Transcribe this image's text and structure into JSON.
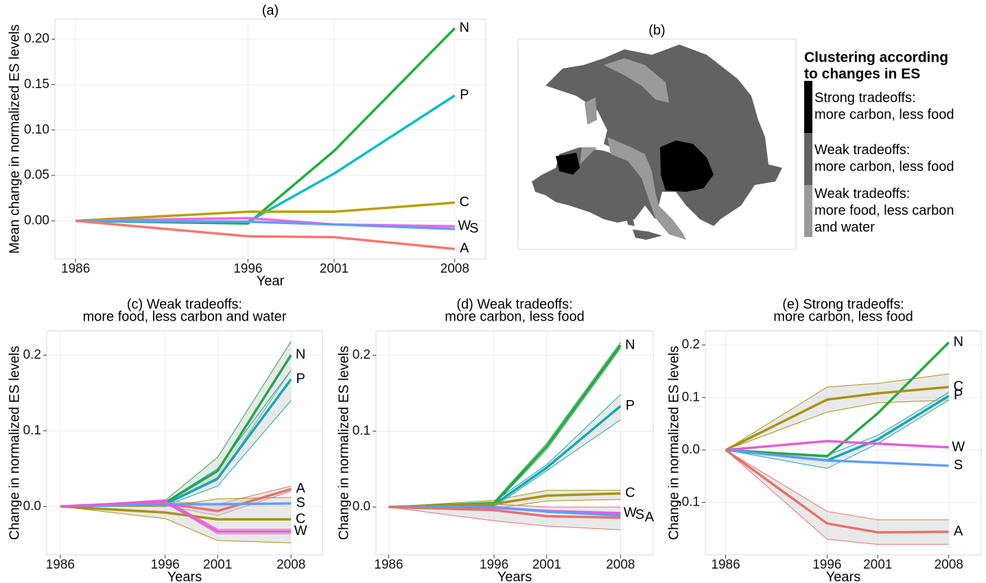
{
  "chart_data": [
    {
      "type": "line",
      "title": "(a)",
      "xlabel": "Year",
      "ylabel": "Mean change in normalized ES levels",
      "x": [
        1986,
        1996,
        2001,
        2008
      ],
      "xlim": [
        1984.8,
        2009.8
      ],
      "xticks": [
        1986,
        1996,
        2001,
        2008
      ],
      "ylim": [
        -0.042,
        0.222
      ],
      "yticks": [
        {
          "value": 0,
          "label": "0.00"
        },
        0.05,
        {
          "value": 0.1,
          "label": "0.10"
        },
        0.15,
        {
          "value": 0.2,
          "label": "0.20"
        }
      ],
      "grid": true,
      "series": [
        {
          "name": "N",
          "color": "#1cae38",
          "values": [
            0,
            -0.003,
            0.077,
            0.212
          ]
        },
        {
          "name": "P",
          "color": "#00bfc4",
          "values": [
            0,
            -0.001,
            0.052,
            0.138
          ]
        },
        {
          "name": "C",
          "color": "#b79f00",
          "values": [
            0,
            0.01,
            0.01,
            0.02
          ]
        },
        {
          "name": "W",
          "color": "#f564e3",
          "values": [
            0,
            0.003,
            -0.004,
            -0.006
          ]
        },
        {
          "name": "S",
          "color": "#619cff",
          "values": [
            0,
            -0.001,
            -0.004,
            -0.009
          ]
        },
        {
          "name": "A",
          "color": "#f8766d",
          "values": [
            0,
            -0.017,
            -0.018,
            -0.031
          ]
        }
      ]
    },
    {
      "type": "map",
      "title": "(b)",
      "legend_title": [
        "Clustering according",
        "to changes in ES"
      ],
      "categories": [
        [
          "Strong tradeoffs:",
          "more carbon, less food"
        ],
        [
          "Weak tradeoffs:",
          "more carbon, less food"
        ],
        [
          "Weak tradeoffs:",
          "more food, less carbon",
          "and water"
        ]
      ],
      "colors": [
        "#000000",
        "#626262",
        "#9a9a9a"
      ]
    },
    {
      "type": "line",
      "title": [
        "(c) Weak tradeoffs:",
        "more food, less carbon and water"
      ],
      "xlabel": "Years",
      "ylabel": "Change in normalized ES levels",
      "x": [
        1986,
        1996,
        2001,
        2008
      ],
      "xlim": [
        1984.7,
        2011
      ],
      "xticks": [
        1986,
        1996,
        2001,
        2008
      ],
      "ylim": [
        -0.064,
        0.232
      ],
      "yticks": [
        {
          "value": 0,
          "label": "0.0"
        },
        0.1,
        0.2
      ],
      "grid": true,
      "series": [
        {
          "name": "N",
          "color": "#22a843",
          "values": [
            0,
            0.005,
            0.047,
            0.2
          ],
          "lower": [
            0,
            0.002,
            0.035,
            0.18
          ],
          "upper": [
            0,
            0.008,
            0.065,
            0.218
          ]
        },
        {
          "name": "P",
          "color": "#12a8b4",
          "values": [
            0,
            0.003,
            0.037,
            0.168
          ],
          "lower": [
            0,
            0.001,
            0.027,
            0.14
          ],
          "upper": [
            0,
            0.006,
            0.05,
            0.18
          ]
        },
        {
          "name": "A",
          "color": "#e8716a",
          "values": [
            0,
            0.004,
            -0.006,
            0.023
          ],
          "lower": [
            0,
            0.001,
            -0.012,
            0.02
          ],
          "upper": [
            0,
            0.007,
            0.003,
            0.027
          ]
        },
        {
          "name": "S",
          "color": "#619cff",
          "values": [
            0,
            0.003,
            0.003,
            0.004
          ]
        },
        {
          "name": "C",
          "color": "#a89210",
          "values": [
            0,
            -0.008,
            -0.017,
            -0.017
          ],
          "lower": [
            0,
            -0.016,
            -0.045,
            -0.048
          ],
          "upper": [
            0,
            0.0,
            0.01,
            0.012
          ]
        },
        {
          "name": "W",
          "color": "#e85cd8",
          "values": [
            0,
            0.007,
            -0.033,
            -0.033
          ],
          "lower": [
            0,
            0.005,
            -0.036,
            -0.036
          ],
          "upper": [
            0,
            0.009,
            -0.03,
            -0.03
          ]
        }
      ]
    },
    {
      "type": "line",
      "title": [
        "(d) Weak tradeoffs:",
        "more carbon, less food"
      ],
      "xlabel": "Years",
      "ylabel": "Change in normalized ES levels",
      "x": [
        1986,
        1996,
        2001,
        2008
      ],
      "xlim": [
        1984.8,
        2011.1
      ],
      "xticks": [
        1986,
        1996,
        2001,
        2008
      ],
      "ylim": [
        -0.063,
        0.232
      ],
      "yticks": [
        {
          "value": 0,
          "label": "0.0"
        },
        0.1,
        0.2
      ],
      "grid": true,
      "series": [
        {
          "name": "N",
          "color": "#22a843",
          "values": [
            0,
            0.005,
            0.08,
            0.213
          ],
          "lower": [
            0,
            0.003,
            0.076,
            0.209
          ],
          "upper": [
            0,
            0.007,
            0.084,
            0.217
          ]
        },
        {
          "name": "P",
          "color": "#12a8b4",
          "values": [
            0,
            0.003,
            0.052,
            0.133
          ],
          "lower": [
            0,
            0.0,
            0.048,
            0.115
          ],
          "upper": [
            0,
            0.007,
            0.056,
            0.148
          ]
        },
        {
          "name": "C",
          "color": "#a89210",
          "values": [
            0,
            0.004,
            0.015,
            0.018
          ],
          "lower": [
            0,
            -0.002,
            0.008,
            0.01
          ],
          "upper": [
            0,
            0.009,
            0.022,
            0.022
          ]
        },
        {
          "name": "W",
          "color": "#e85cd8",
          "values": [
            0,
            -0.001,
            -0.005,
            -0.008
          ]
        },
        {
          "name": "S",
          "color": "#619cff",
          "values": [
            0,
            0.0,
            -0.006,
            -0.011
          ]
        },
        {
          "name": "A",
          "color": "#e8716a",
          "values": [
            0,
            -0.004,
            -0.012,
            -0.014
          ],
          "lower": [
            0,
            -0.018,
            -0.025,
            -0.03
          ],
          "upper": [
            0,
            0.004,
            0.0,
            0.0
          ]
        }
      ]
    },
    {
      "type": "line",
      "title": [
        "(e) Strong tradeoffs:",
        "more carbon, less food"
      ],
      "xlabel": "Years",
      "ylabel": "Change in normalized ES levels",
      "x": [
        1986,
        1996,
        2001,
        2008
      ],
      "xlim": [
        1984,
        2011.2
      ],
      "xticks": [
        1986,
        1996,
        2001,
        2008
      ],
      "ylim": [
        -0.2,
        0.227
      ],
      "yticks": [
        -0.1,
        {
          "value": 0,
          "label": "0.0"
        },
        0.1,
        0.2
      ],
      "grid": true,
      "series": [
        {
          "name": "N",
          "color": "#22a843",
          "values": [
            0,
            -0.012,
            0.07,
            0.205
          ]
        },
        {
          "name": "C",
          "color": "#a89210",
          "values": [
            0,
            0.096,
            0.108,
            0.12
          ],
          "lower": [
            0,
            0.072,
            0.09,
            0.095
          ],
          "upper": [
            0,
            0.12,
            0.127,
            0.145
          ]
        },
        {
          "name": "P",
          "color": "#12a8b4",
          "values": [
            0,
            -0.02,
            0.02,
            0.103
          ],
          "lower": [
            0,
            -0.035,
            0.012,
            0.095
          ],
          "upper": [
            0,
            -0.01,
            0.028,
            0.11
          ]
        },
        {
          "name": "W",
          "color": "#e85cd8",
          "values": [
            0,
            0.017,
            0.012,
            0.005
          ]
        },
        {
          "name": "S",
          "color": "#619cff",
          "values": [
            0,
            -0.02,
            -0.024,
            -0.03
          ]
        },
        {
          "name": "A",
          "color": "#e8716a",
          "values": [
            0,
            -0.14,
            -0.157,
            -0.156
          ],
          "lower": [
            0,
            -0.17,
            -0.18,
            -0.18
          ],
          "upper": [
            0,
            -0.117,
            -0.133,
            -0.133
          ]
        }
      ]
    }
  ]
}
